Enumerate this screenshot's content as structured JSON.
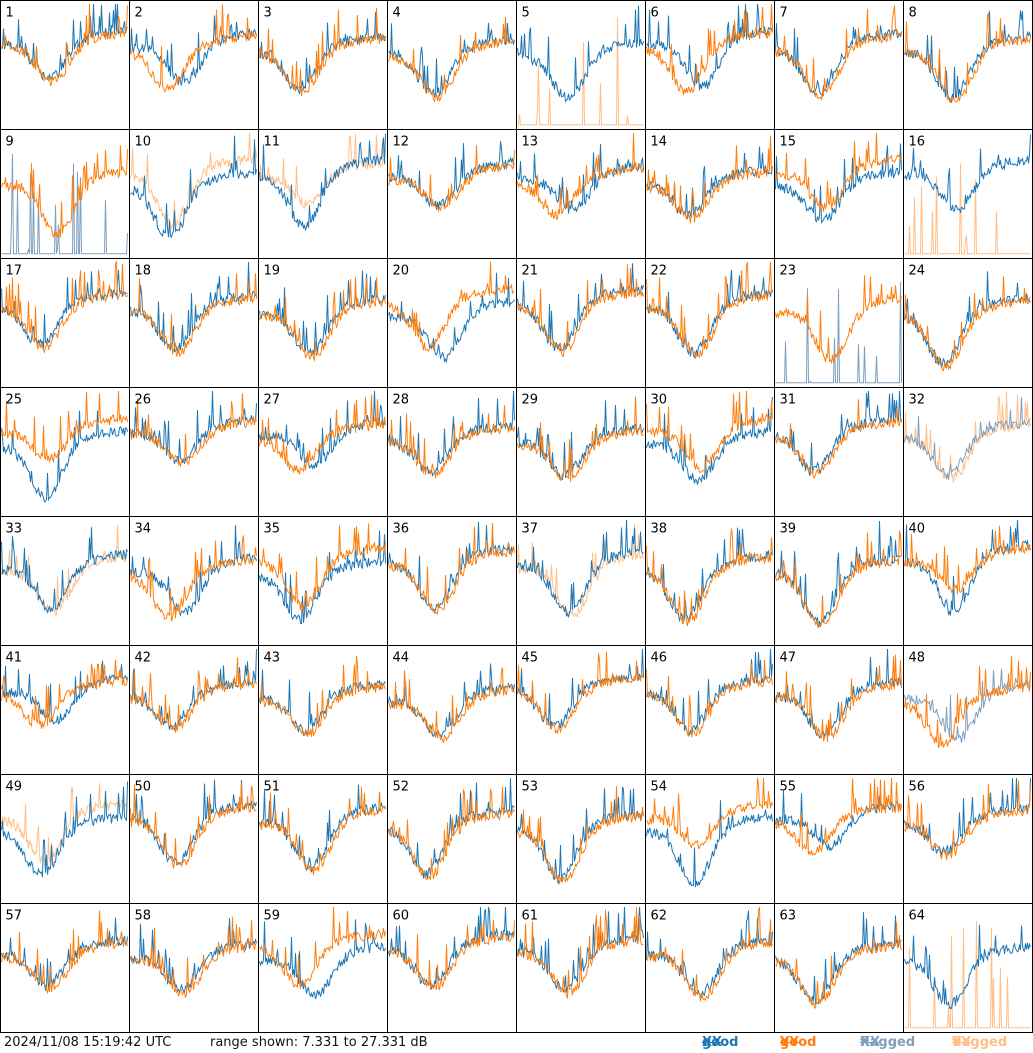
{
  "footer": {
    "timestamp": "2024/11/08 15:19:42 UTC",
    "range_text": "range shown: 7.331 to 27.331 dB"
  },
  "legend": [
    {
      "label": "good",
      "pol": "XX",
      "color": "#1f77b4"
    },
    {
      "label": "good",
      "pol": "YY",
      "color": "#ff7f0e"
    },
    {
      "label": "flagged",
      "pol": "XX",
      "color": "#7f9fbf"
    },
    {
      "label": "flagged",
      "pol": "YY",
      "color": "#ffbf87"
    }
  ],
  "chart_data": {
    "type": "line",
    "title": "",
    "xlabel": "",
    "ylabel": "",
    "ylim": [
      7.331,
      27.331
    ],
    "y_units": "dB",
    "grid": "8x8 small multiples",
    "panels": [
      {
        "id": "1",
        "xx": "good",
        "yy": "good"
      },
      {
        "id": "2",
        "xx": "good",
        "yy": "good"
      },
      {
        "id": "3",
        "xx": "good",
        "yy": "good"
      },
      {
        "id": "4",
        "xx": "good",
        "yy": "good"
      },
      {
        "id": "5",
        "xx": "good",
        "yy": "flagged"
      },
      {
        "id": "6",
        "xx": "good",
        "yy": "good"
      },
      {
        "id": "7",
        "xx": "good",
        "yy": "good"
      },
      {
        "id": "8",
        "xx": "good",
        "yy": "good"
      },
      {
        "id": "9",
        "xx": "flagged",
        "yy": "good"
      },
      {
        "id": "10",
        "xx": "good",
        "yy": "flagged"
      },
      {
        "id": "11",
        "xx": "good",
        "yy": "flagged"
      },
      {
        "id": "12",
        "xx": "good",
        "yy": "good"
      },
      {
        "id": "13",
        "xx": "good",
        "yy": "good"
      },
      {
        "id": "14",
        "xx": "good",
        "yy": "good"
      },
      {
        "id": "15",
        "xx": "good",
        "yy": "good"
      },
      {
        "id": "16",
        "xx": "good",
        "yy": "flagged"
      },
      {
        "id": "17",
        "xx": "good",
        "yy": "good"
      },
      {
        "id": "18",
        "xx": "good",
        "yy": "good"
      },
      {
        "id": "19",
        "xx": "good",
        "yy": "good"
      },
      {
        "id": "20",
        "xx": "good",
        "yy": "good"
      },
      {
        "id": "21",
        "xx": "good",
        "yy": "good"
      },
      {
        "id": "22",
        "xx": "good",
        "yy": "good"
      },
      {
        "id": "23",
        "xx": "flagged",
        "yy": "good"
      },
      {
        "id": "24",
        "xx": "good",
        "yy": "good"
      },
      {
        "id": "25",
        "xx": "good",
        "yy": "good"
      },
      {
        "id": "26",
        "xx": "good",
        "yy": "good"
      },
      {
        "id": "27",
        "xx": "good",
        "yy": "good"
      },
      {
        "id": "28",
        "xx": "good",
        "yy": "good"
      },
      {
        "id": "29",
        "xx": "good",
        "yy": "good"
      },
      {
        "id": "30",
        "xx": "good",
        "yy": "good"
      },
      {
        "id": "31",
        "xx": "good",
        "yy": "good"
      },
      {
        "id": "32",
        "xx": "flagged",
        "yy": "flagged"
      },
      {
        "id": "33",
        "xx": "good",
        "yy": "flagged"
      },
      {
        "id": "34",
        "xx": "good",
        "yy": "good"
      },
      {
        "id": "35",
        "xx": "good",
        "yy": "good"
      },
      {
        "id": "36",
        "xx": "good",
        "yy": "good"
      },
      {
        "id": "37",
        "xx": "good",
        "yy": "flagged"
      },
      {
        "id": "38",
        "xx": "good",
        "yy": "good"
      },
      {
        "id": "39",
        "xx": "good",
        "yy": "good"
      },
      {
        "id": "40",
        "xx": "good",
        "yy": "good"
      },
      {
        "id": "41",
        "xx": "good",
        "yy": "good"
      },
      {
        "id": "42",
        "xx": "good",
        "yy": "good"
      },
      {
        "id": "43",
        "xx": "good",
        "yy": "good"
      },
      {
        "id": "44",
        "xx": "good",
        "yy": "good"
      },
      {
        "id": "45",
        "xx": "good",
        "yy": "good"
      },
      {
        "id": "46",
        "xx": "good",
        "yy": "good"
      },
      {
        "id": "47",
        "xx": "good",
        "yy": "good"
      },
      {
        "id": "48",
        "xx": "flagged",
        "yy": "good"
      },
      {
        "id": "49",
        "xx": "good",
        "yy": "flagged"
      },
      {
        "id": "50",
        "xx": "good",
        "yy": "good"
      },
      {
        "id": "51",
        "xx": "good",
        "yy": "good"
      },
      {
        "id": "52",
        "xx": "good",
        "yy": "good"
      },
      {
        "id": "53",
        "xx": "good",
        "yy": "good"
      },
      {
        "id": "54",
        "xx": "good",
        "yy": "good"
      },
      {
        "id": "55",
        "xx": "good",
        "yy": "good"
      },
      {
        "id": "56",
        "xx": "good",
        "yy": "good"
      },
      {
        "id": "57",
        "xx": "good",
        "yy": "good"
      },
      {
        "id": "58",
        "xx": "good",
        "yy": "good"
      },
      {
        "id": "59",
        "xx": "good",
        "yy": "good"
      },
      {
        "id": "60",
        "xx": "good",
        "yy": "good"
      },
      {
        "id": "61",
        "xx": "good",
        "yy": "good"
      },
      {
        "id": "62",
        "xx": "good",
        "yy": "good"
      },
      {
        "id": "63",
        "xx": "good",
        "yy": "good"
      },
      {
        "id": "64",
        "xx": "good",
        "yy": "flagged"
      }
    ]
  }
}
